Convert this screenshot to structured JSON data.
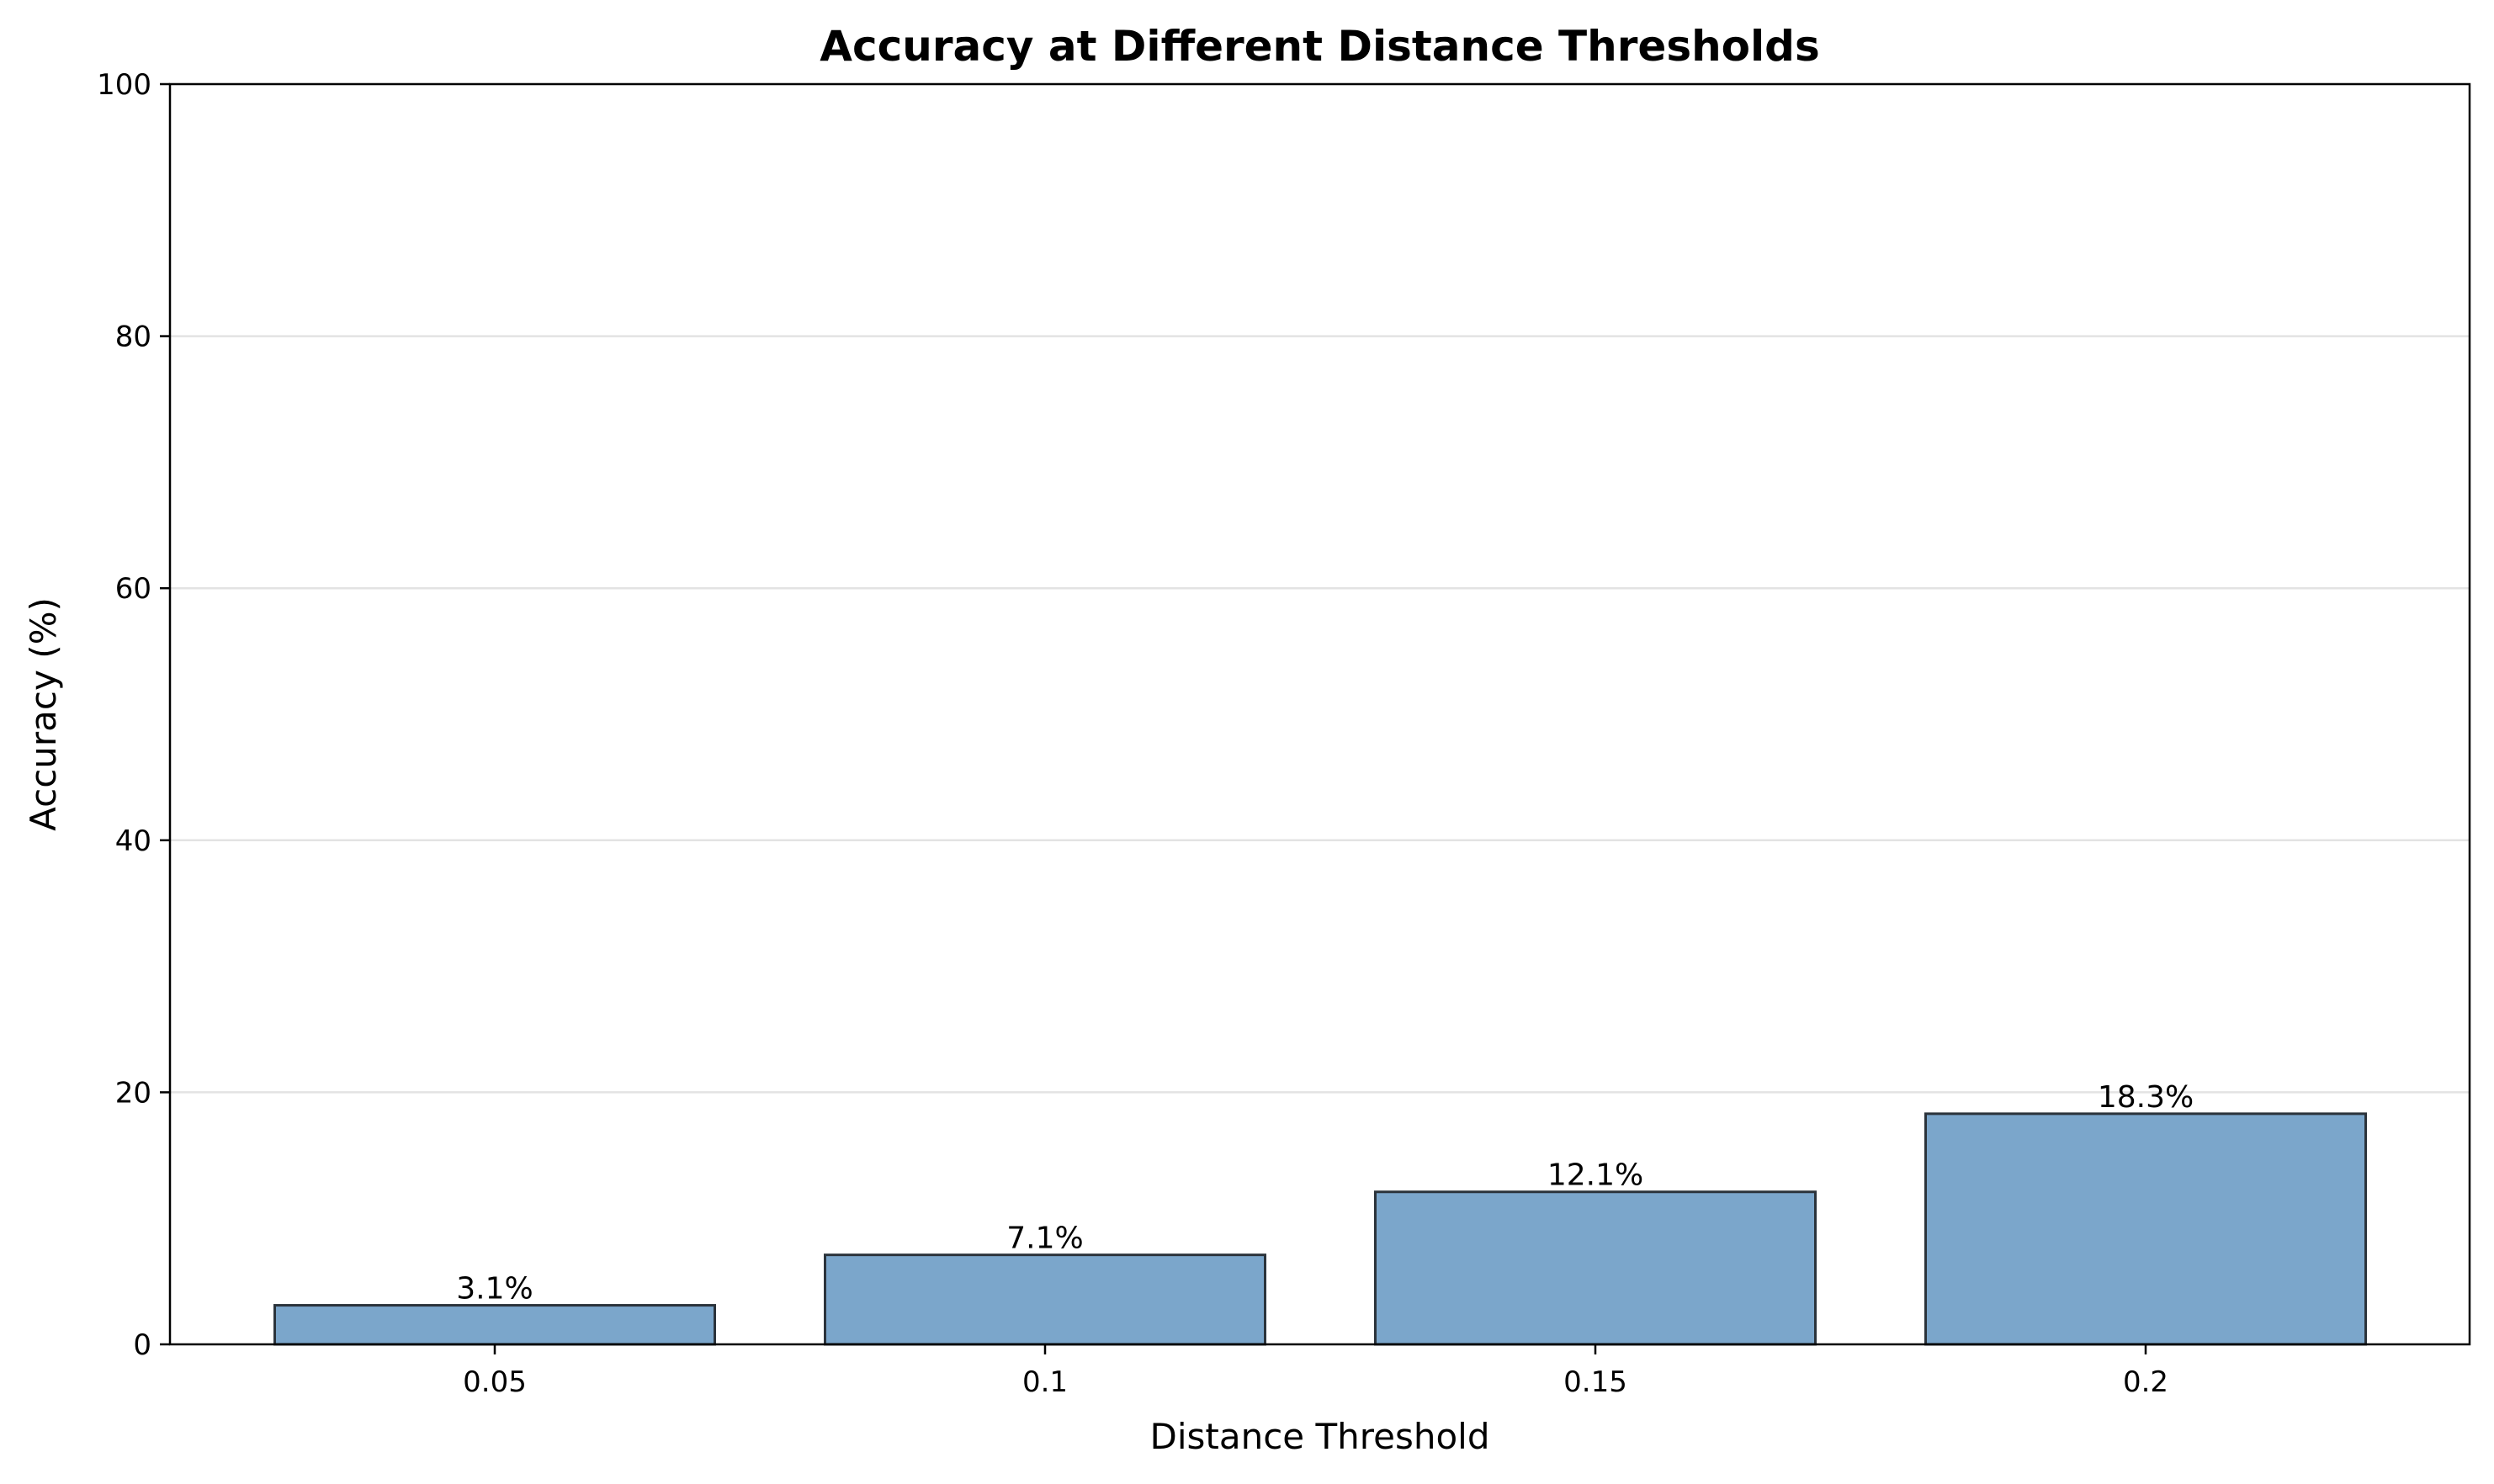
{
  "chart_data": {
    "type": "bar",
    "title": "Accuracy at Different Distance Thresholds",
    "xlabel": "Distance Threshold",
    "ylabel": "Accuracy (%)",
    "categories": [
      "0.05",
      "0.1",
      "0.15",
      "0.2"
    ],
    "values": [
      3.1,
      7.1,
      12.1,
      18.3
    ],
    "value_labels": [
      "3.1%",
      "7.1%",
      "12.1%",
      "18.3%"
    ],
    "ylim": [
      0,
      100
    ],
    "yticks": [
      "0",
      "20",
      "40",
      "60",
      "80",
      "100"
    ],
    "grid": "horizontal",
    "legend": "none",
    "bar_color": "#7ba6cb",
    "edge_color": "#2b333b"
  }
}
